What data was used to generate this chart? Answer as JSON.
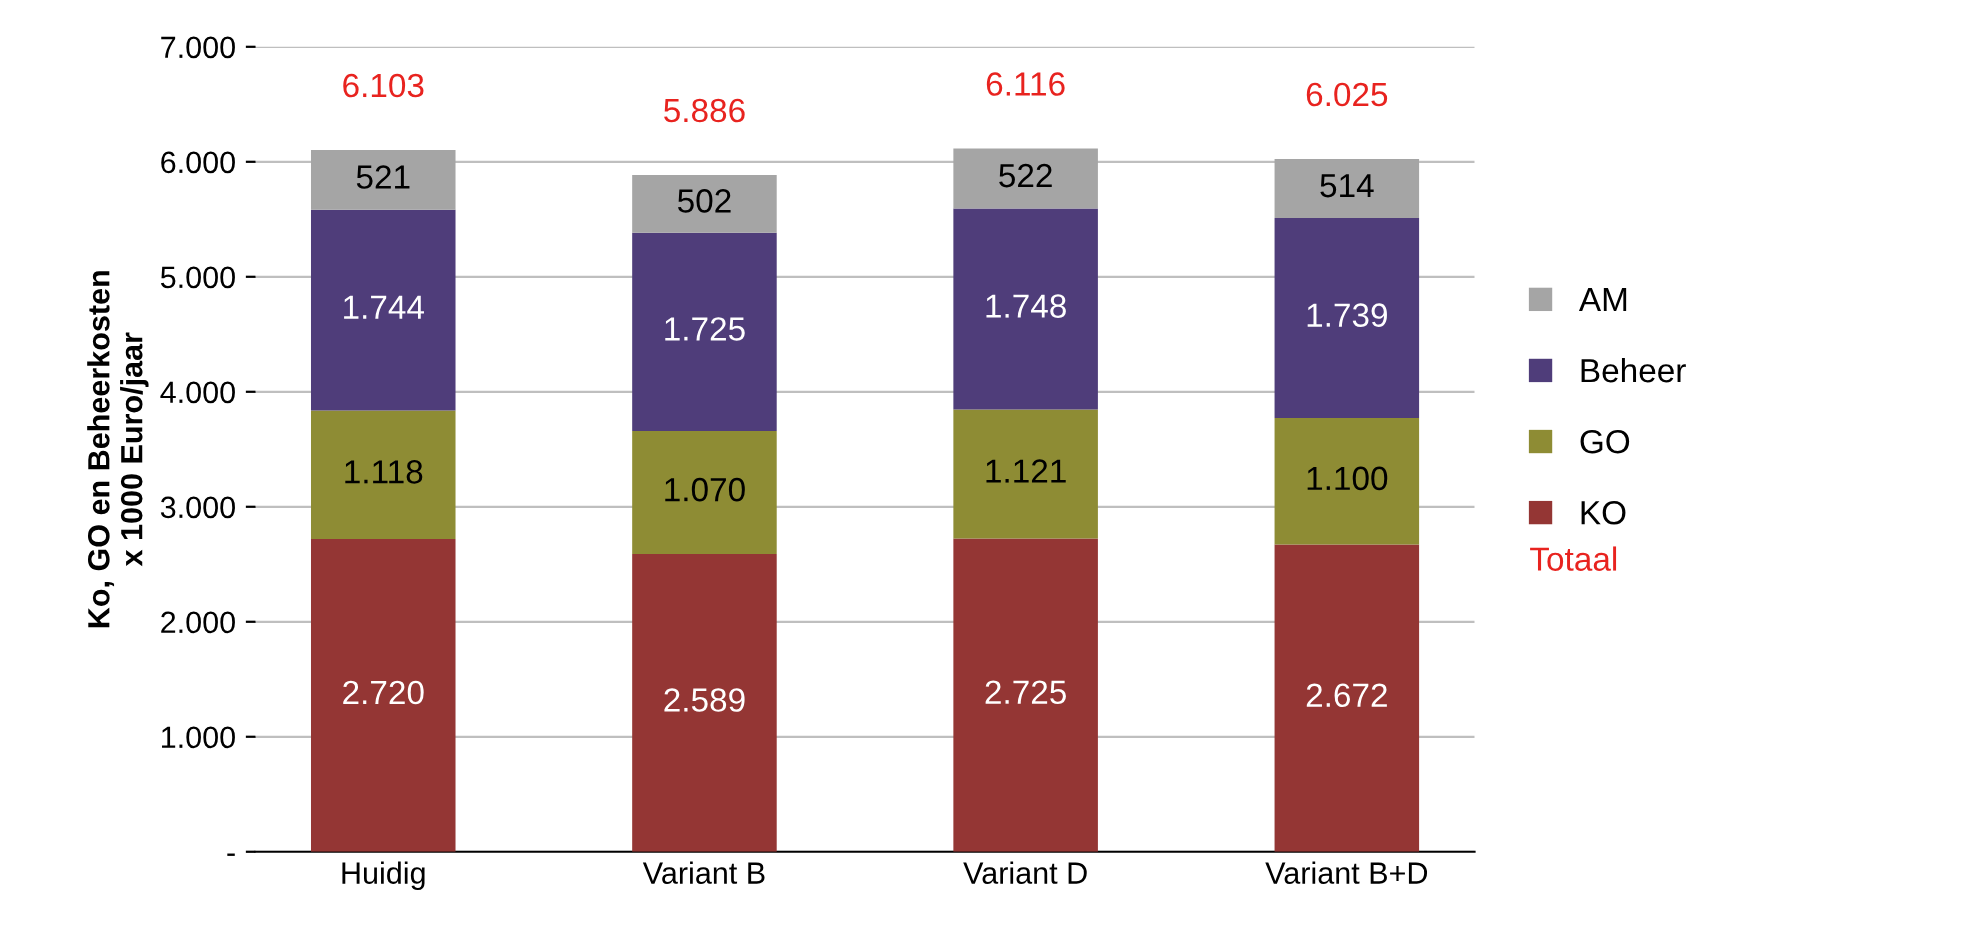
{
  "chart_data": {
    "type": "bar",
    "stacked": true,
    "ylabel": "Ko, GO en Beheerkosten\nx 1000 Euro/jaar",
    "categories": [
      "Huidig",
      "Variant B",
      "Variant D",
      "Variant B+D"
    ],
    "series": [
      {
        "name": "KO",
        "color": "#943634",
        "values": [
          2720,
          2589,
          2725,
          2672
        ],
        "value_labels": [
          "2.720",
          "2.589",
          "2.725",
          "2.672"
        ]
      },
      {
        "name": "GO",
        "color": "#8e8c34",
        "values": [
          1118,
          1070,
          1121,
          1100
        ],
        "value_labels": [
          "1.118",
          "1.070",
          "1.121",
          "1.100"
        ]
      },
      {
        "name": "Beheer",
        "color": "#4f3d7a",
        "values": [
          1744,
          1725,
          1748,
          1739
        ],
        "value_labels": [
          "1.744",
          "1.725",
          "1.748",
          "1.739"
        ]
      },
      {
        "name": "AM",
        "color": "#a5a5a5",
        "values": [
          521,
          502,
          522,
          514
        ],
        "value_labels": [
          "521",
          "502",
          "522",
          "514"
        ]
      }
    ],
    "totals": [
      "6.103",
      "5.886",
      "6.116",
      "6.025"
    ],
    "annotations": [
      "Totaal"
    ],
    "ylim": [
      0,
      7000
    ],
    "yticks": [
      {
        "value": 0,
        "label": "-"
      },
      {
        "value": 1000,
        "label": "1.000"
      },
      {
        "value": 2000,
        "label": "2.000"
      },
      {
        "value": 3000,
        "label": "3.000"
      },
      {
        "value": 4000,
        "label": "4.000"
      },
      {
        "value": 5000,
        "label": "5.000"
      },
      {
        "value": 6000,
        "label": "6.000"
      },
      {
        "value": 7000,
        "label": "7.000"
      }
    ],
    "grid": "y",
    "legend": "right"
  }
}
